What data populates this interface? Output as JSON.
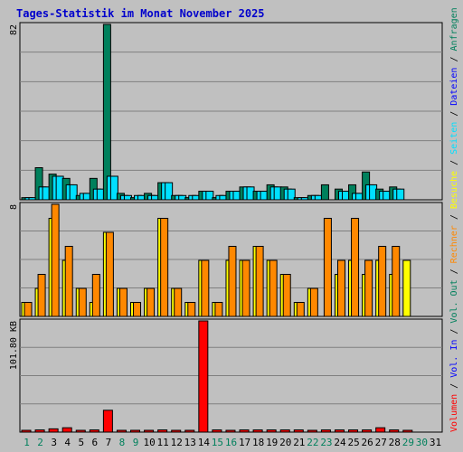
{
  "colors": {
    "background": "#C0C0C0",
    "plot_border": "#000000",
    "gridline": "#808080",
    "title": "#0000CC",
    "weekday_day_label": "#000000",
    "weekend_day_label": "#00805C",
    "anfragen": "#00805C",
    "dateien": "#00E0FF",
    "seiten": "#00E0FF",
    "besuche": "#FFFF00",
    "rechner": "#FF8800",
    "volumen": "#FF0000"
  },
  "chart_data": [
    {
      "type": "bar",
      "title": "Tages-Statistik im Monat November 2025",
      "panel": "top",
      "ylim": [
        0,
        82
      ],
      "ytick_label": "82",
      "categories": [
        "1",
        "2",
        "3",
        "4",
        "5",
        "6",
        "7",
        "8",
        "9",
        "10",
        "11",
        "12",
        "13",
        "14",
        "15",
        "16",
        "17",
        "18",
        "19",
        "20",
        "21",
        "22",
        "23",
        "24",
        "25",
        "26",
        "27",
        "28",
        "29",
        "30",
        "31"
      ],
      "weekend_days": [
        "1",
        "2",
        "8",
        "9",
        "15",
        "16",
        "22",
        "23",
        "29",
        "30"
      ],
      "series": [
        {
          "name": "Anfragen",
          "values": [
            1,
            15,
            12,
            10,
            2,
            10,
            82,
            3,
            1,
            3,
            8,
            2,
            1,
            4,
            1,
            4,
            6,
            4,
            7,
            6,
            1,
            2,
            7,
            5,
            7,
            13,
            5,
            6,
            0,
            0,
            0
          ]
        },
        {
          "name": "Dateien",
          "values": [
            1,
            6,
            11,
            7,
            3,
            5,
            11,
            2,
            2,
            2,
            8,
            2,
            2,
            4,
            2,
            4,
            6,
            4,
            6,
            5,
            1,
            2,
            0,
            4,
            3,
            7,
            4,
            5,
            0,
            0,
            0
          ]
        },
        {
          "name": "Seiten",
          "values": [
            1,
            6,
            11,
            7,
            3,
            5,
            11,
            2,
            2,
            2,
            8,
            2,
            2,
            4,
            2,
            4,
            6,
            4,
            6,
            5,
            1,
            2,
            0,
            4,
            3,
            7,
            4,
            5,
            0,
            0,
            0
          ]
        }
      ]
    },
    {
      "type": "bar",
      "panel": "middle",
      "ylim": [
        0,
        8
      ],
      "ytick_label": "8",
      "categories": [
        "1",
        "2",
        "3",
        "4",
        "5",
        "6",
        "7",
        "8",
        "9",
        "10",
        "11",
        "12",
        "13",
        "14",
        "15",
        "16",
        "17",
        "18",
        "19",
        "20",
        "21",
        "22",
        "23",
        "24",
        "25",
        "26",
        "27",
        "28",
        "29",
        "30",
        "31"
      ],
      "series": [
        {
          "name": "Besuche",
          "values": [
            1,
            2,
            7,
            4,
            2,
            1,
            6,
            2,
            1,
            2,
            7,
            2,
            1,
            4,
            1,
            4,
            4,
            5,
            4,
            3,
            1,
            2,
            0,
            3,
            4,
            3,
            4,
            3,
            4,
            0,
            0
          ]
        },
        {
          "name": "Rechner",
          "values": [
            1,
            3,
            8,
            5,
            2,
            3,
            6,
            2,
            1,
            2,
            7,
            2,
            1,
            4,
            1,
            5,
            4,
            5,
            4,
            3,
            1,
            2,
            7,
            4,
            7,
            4,
            5,
            5,
            0,
            0,
            0
          ]
        }
      ]
    },
    {
      "type": "bar",
      "panel": "bottom",
      "ylim": [
        0,
        101.8
      ],
      "ytick_label": "101.80 KB",
      "categories": [
        "1",
        "2",
        "3",
        "4",
        "5",
        "6",
        "7",
        "8",
        "9",
        "10",
        "11",
        "12",
        "13",
        "14",
        "15",
        "16",
        "17",
        "18",
        "19",
        "20",
        "21",
        "22",
        "23",
        "24",
        "25",
        "26",
        "27",
        "28",
        "29",
        "30",
        "31"
      ],
      "series": [
        {
          "name": "Volumen",
          "values": [
            1,
            2,
            3,
            4,
            1,
            2,
            20,
            1,
            1,
            1,
            2,
            1,
            1,
            101.8,
            2,
            1,
            2,
            2,
            2,
            2,
            2,
            1,
            2,
            2,
            2,
            2,
            4,
            2,
            1,
            0,
            0
          ]
        }
      ]
    }
  ],
  "right_legend": [
    {
      "label": "Volumen",
      "color": "#FF0000"
    },
    {
      "label": "Vol. In",
      "color": "#0000FF"
    },
    {
      "label": "Vol. Out",
      "color": "#00805C"
    },
    {
      "label": "Rechner",
      "color": "#FF8800"
    },
    {
      "label": "Besuche",
      "color": "#FFFF00"
    },
    {
      "label": "Seiten",
      "color": "#00E0FF"
    },
    {
      "label": "Dateien",
      "color": "#0000FF"
    },
    {
      "label": "Anfragen",
      "color": "#00805C"
    }
  ],
  "legend_separator": " / "
}
